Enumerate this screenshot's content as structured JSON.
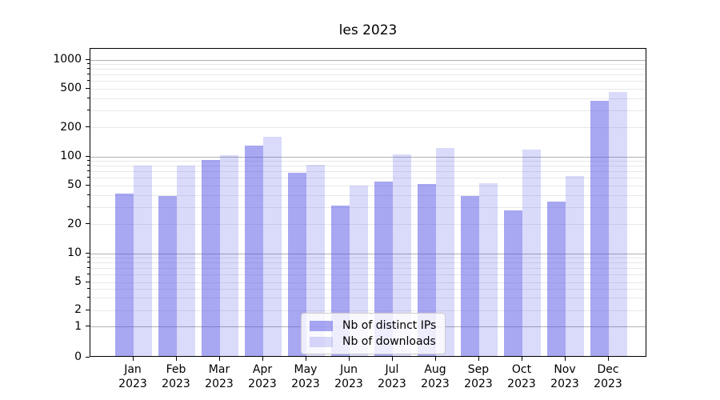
{
  "title": "les 2023",
  "colors": {
    "bar_ips": "rgba(80,80,230,0.5)",
    "bar_downloads": "rgba(80,80,230,0.21)",
    "major_grid": "#b0b0b0",
    "minor_grid": "#e8e8e8",
    "axis": "#000000",
    "legend_border": "#cccccc",
    "legend_bg": "rgba(255,255,255,0.8)",
    "text": "#000000"
  },
  "legend": {
    "items": [
      {
        "label": "Nb of distinct IPs",
        "color": "rgba(80,80,230,0.5)"
      },
      {
        "label": "Nb of downloads",
        "color": "rgba(80,80,230,0.21)"
      }
    ]
  },
  "y_axis": {
    "tick_labels": [
      "1000",
      "500",
      "200",
      "100",
      "50",
      "20",
      "10",
      "5",
      "2",
      "1",
      "0"
    ],
    "tick_values": [
      1000,
      500,
      200,
      100,
      50,
      20,
      10,
      5,
      2,
      1,
      0
    ],
    "major_grid_values": [
      1,
      10,
      100,
      1000
    ],
    "minor_grid_values": [
      2,
      3,
      4,
      5,
      6,
      7,
      8,
      9,
      20,
      30,
      40,
      50,
      60,
      70,
      80,
      90,
      200,
      300,
      400,
      500,
      600,
      700,
      800,
      900
    ]
  },
  "x_axis": {
    "labels": [
      {
        "month": "Jan",
        "year": "2023"
      },
      {
        "month": "Feb",
        "year": "2023"
      },
      {
        "month": "Mar",
        "year": "2023"
      },
      {
        "month": "Apr",
        "year": "2023"
      },
      {
        "month": "May",
        "year": "2023"
      },
      {
        "month": "Jun",
        "year": "2023"
      },
      {
        "month": "Jul",
        "year": "2023"
      },
      {
        "month": "Aug",
        "year": "2023"
      },
      {
        "month": "Sep",
        "year": "2023"
      },
      {
        "month": "Oct",
        "year": "2023"
      },
      {
        "month": "Nov",
        "year": "2023"
      },
      {
        "month": "Dec",
        "year": "2023"
      }
    ]
  },
  "chart_data": {
    "type": "bar",
    "title": "les 2023",
    "categories": [
      "Jan 2023",
      "Feb 2023",
      "Mar 2023",
      "Apr 2023",
      "May 2023",
      "Jun 2023",
      "Jul 2023",
      "Aug 2023",
      "Sep 2023",
      "Oct 2023",
      "Nov 2023",
      "Dec 2023"
    ],
    "series": [
      {
        "name": "Nb of distinct IPs",
        "values": [
          40,
          38,
          90,
          126,
          66,
          30,
          53,
          50,
          38,
          27,
          33,
          365
        ]
      },
      {
        "name": "Nb of downloads",
        "values": [
          78,
          78,
          100,
          156,
          80,
          49,
          102,
          119,
          51,
          114,
          61,
          450
        ]
      }
    ],
    "xlabel": "",
    "ylabel": "",
    "yscale": "symlog",
    "ylim": [
      0,
      1300
    ],
    "y_ticks": [
      0,
      1,
      2,
      5,
      10,
      20,
      50,
      100,
      200,
      500,
      1000
    ],
    "grid": "both",
    "legend_position": "lower center"
  }
}
